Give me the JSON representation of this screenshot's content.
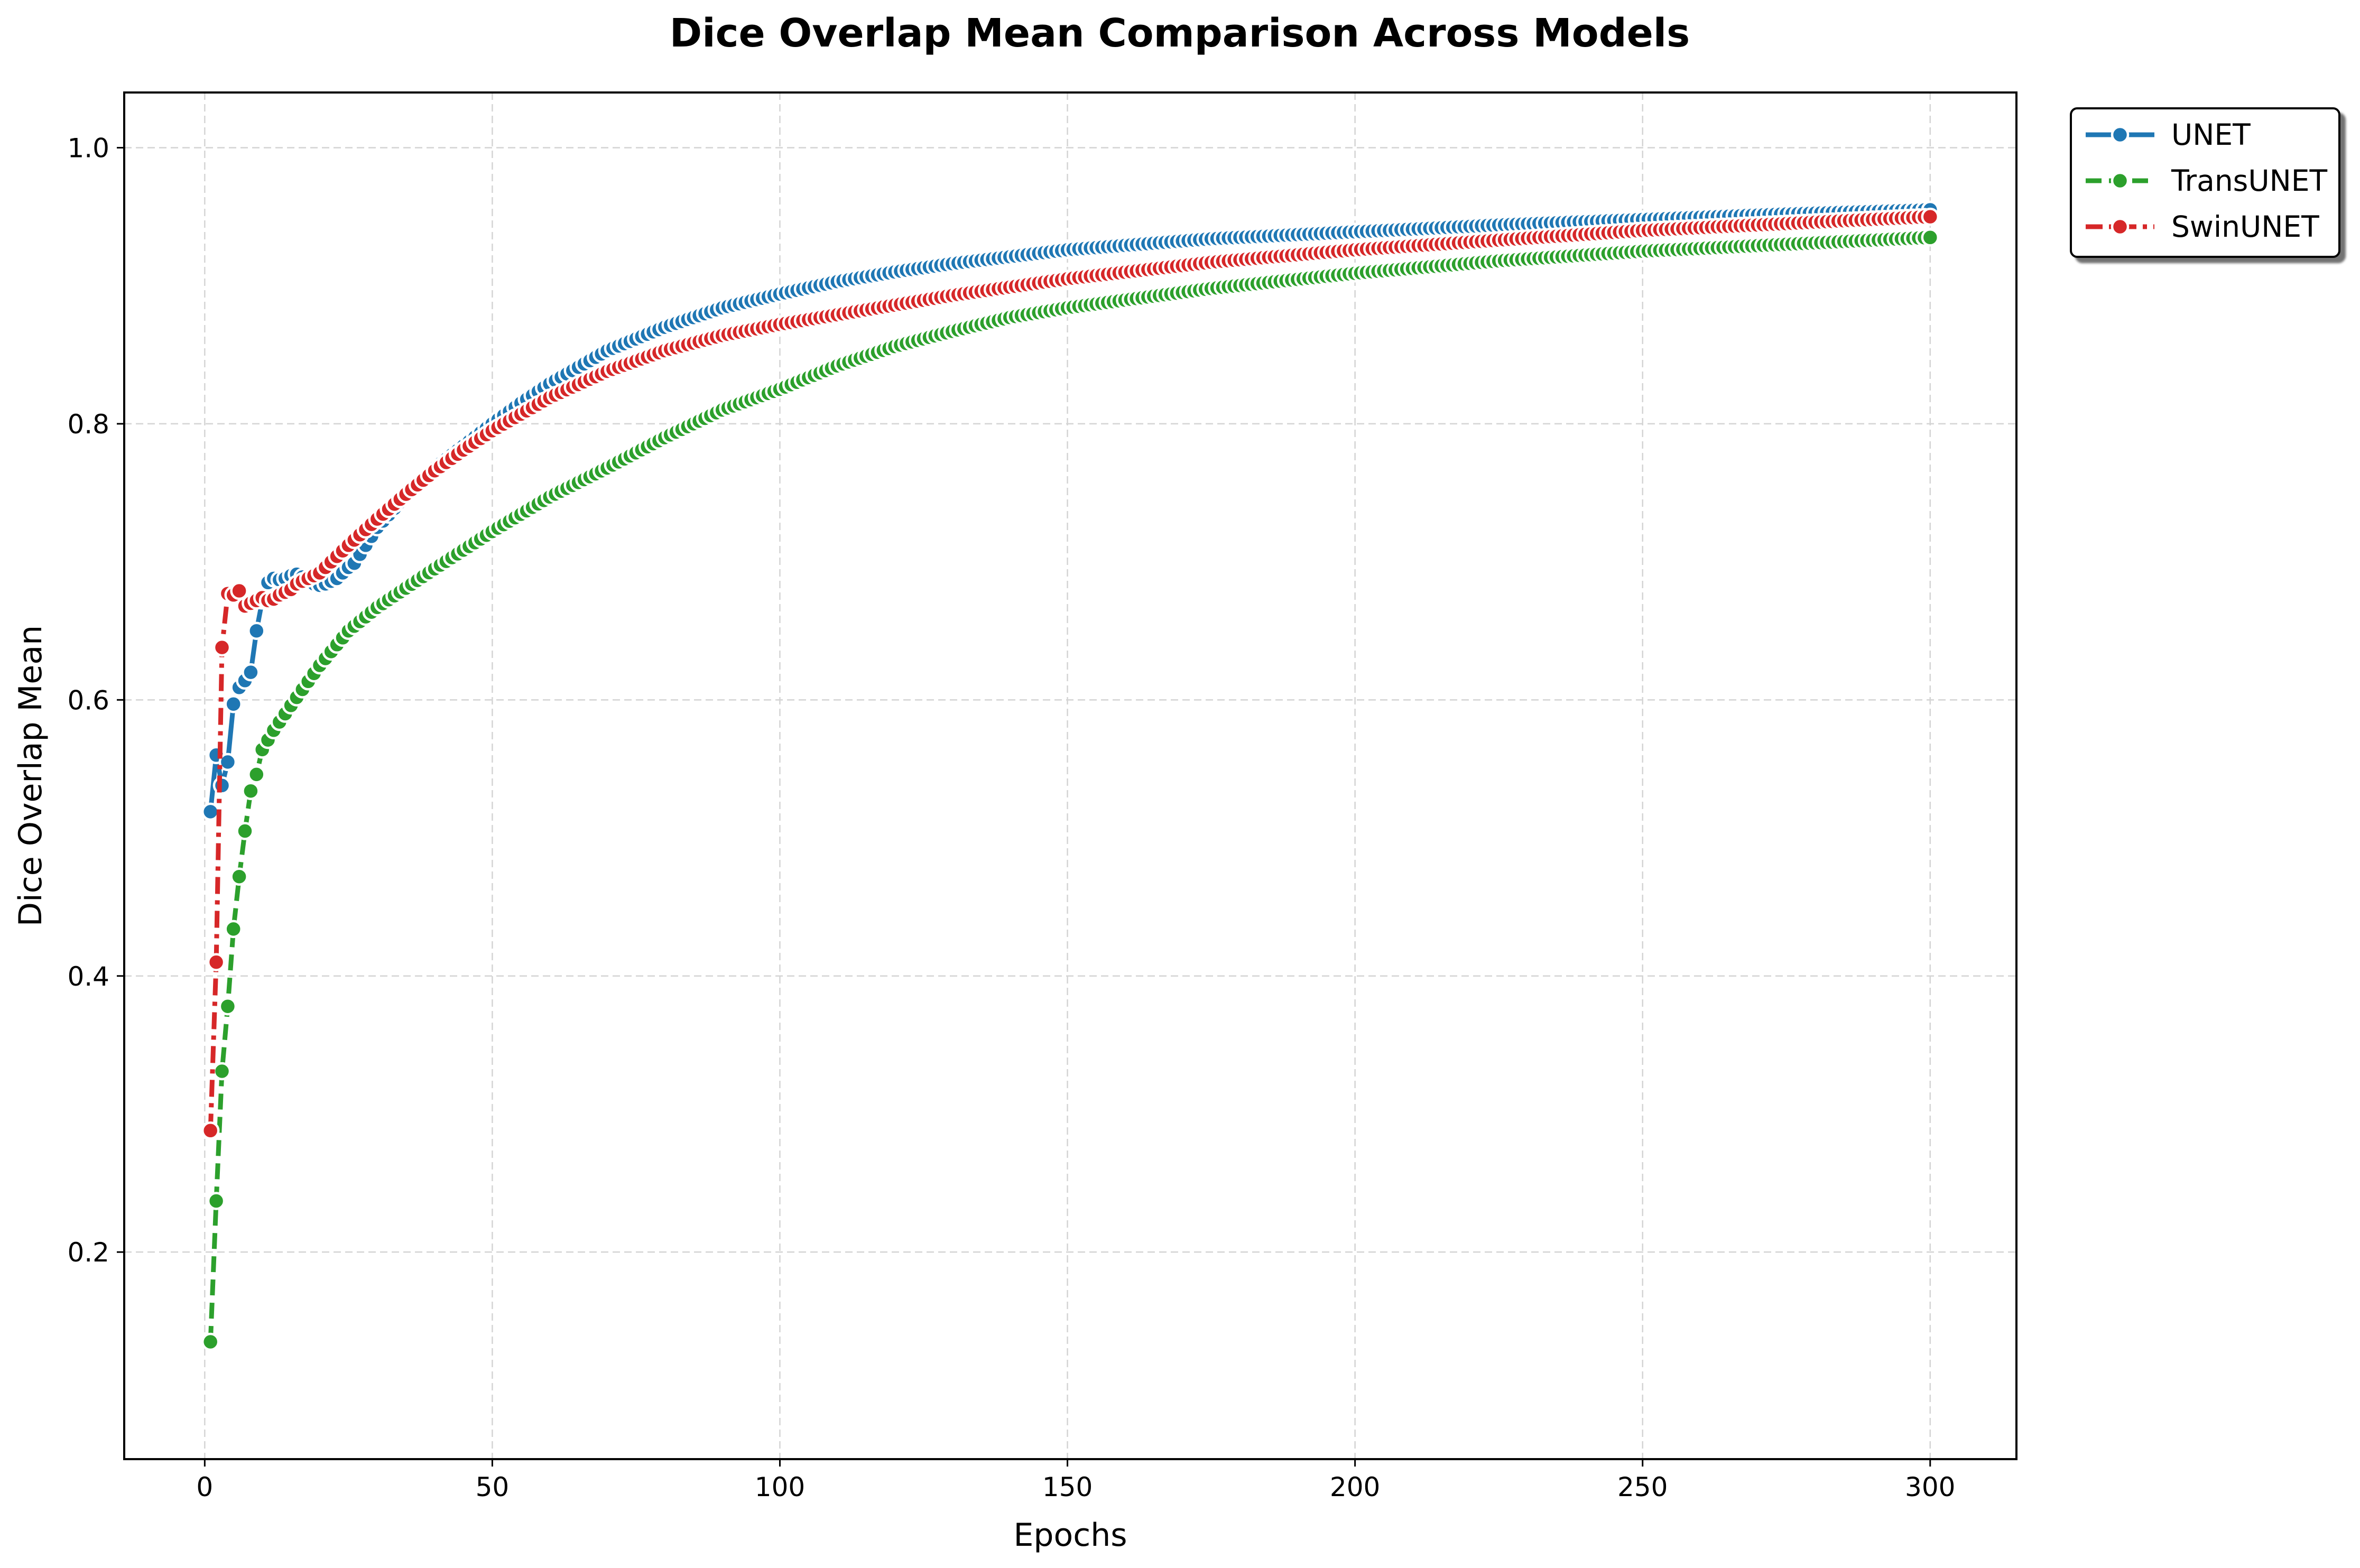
{
  "chart_data": {
    "type": "line",
    "title": "Dice Overlap Mean Comparison Across Models",
    "xlabel": "Epochs",
    "ylabel": "Dice Overlap Mean",
    "xlim": [
      -14,
      315
    ],
    "ylim": [
      0.05,
      1.04
    ],
    "xticks": [
      0,
      50,
      100,
      150,
      200,
      250,
      300
    ],
    "yticks": [
      0.2,
      0.4,
      0.6,
      0.8,
      1.0
    ],
    "xtick_labels": [
      "0",
      "50",
      "100",
      "150",
      "200",
      "250",
      "300"
    ],
    "ytick_labels": [
      "0.2",
      "0.4",
      "0.6",
      "0.8",
      "1.0"
    ],
    "grid": true,
    "legend_position": "upper-right-outside",
    "marker": "circle",
    "series": [
      {
        "name": "UNET",
        "color": "#1f77b4",
        "linestyle": "solid",
        "anchors": [
          [
            1,
            0.519
          ],
          [
            2,
            0.56
          ],
          [
            3,
            0.538
          ],
          [
            4,
            0.555
          ],
          [
            5,
            0.597
          ],
          [
            6,
            0.609
          ],
          [
            7,
            0.614
          ],
          [
            8,
            0.62
          ],
          [
            9,
            0.65
          ],
          [
            10,
            0.672
          ],
          [
            11,
            0.685
          ],
          [
            12,
            0.688
          ],
          [
            13,
            0.687
          ],
          [
            14,
            0.688
          ],
          [
            15,
            0.69
          ],
          [
            16,
            0.691
          ],
          [
            17,
            0.689
          ],
          [
            18,
            0.686
          ],
          [
            19,
            0.684
          ],
          [
            20,
            0.683
          ],
          [
            21,
            0.684
          ],
          [
            22,
            0.686
          ],
          [
            23,
            0.688
          ],
          [
            24,
            0.692
          ],
          [
            25,
            0.696
          ],
          [
            26,
            0.699
          ],
          [
            28,
            0.712
          ],
          [
            30,
            0.725
          ],
          [
            35,
            0.748
          ],
          [
            40,
            0.768
          ],
          [
            45,
            0.784
          ],
          [
            50,
            0.8
          ],
          [
            55,
            0.815
          ],
          [
            60,
            0.829
          ],
          [
            70,
            0.853
          ],
          [
            80,
            0.87
          ],
          [
            90,
            0.884
          ],
          [
            100,
            0.894
          ],
          [
            110,
            0.903
          ],
          [
            120,
            0.91
          ],
          [
            130,
            0.916
          ],
          [
            140,
            0.921
          ],
          [
            150,
            0.926
          ],
          [
            175,
            0.934
          ],
          [
            200,
            0.939
          ],
          [
            225,
            0.944
          ],
          [
            250,
            0.948
          ],
          [
            275,
            0.952
          ],
          [
            300,
            0.955
          ]
        ]
      },
      {
        "name": "TransUNET",
        "color": "#2ca02c",
        "linestyle": "dashed",
        "anchors": [
          [
            1,
            0.135
          ],
          [
            2,
            0.237
          ],
          [
            3,
            0.331
          ],
          [
            4,
            0.378
          ],
          [
            5,
            0.434
          ],
          [
            6,
            0.472
          ],
          [
            7,
            0.505
          ],
          [
            8,
            0.534
          ],
          [
            9,
            0.546
          ],
          [
            10,
            0.564
          ],
          [
            12,
            0.578
          ],
          [
            15,
            0.596
          ],
          [
            20,
            0.625
          ],
          [
            25,
            0.65
          ],
          [
            30,
            0.667
          ],
          [
            40,
            0.695
          ],
          [
            50,
            0.722
          ],
          [
            60,
            0.747
          ],
          [
            70,
            0.768
          ],
          [
            80,
            0.79
          ],
          [
            90,
            0.81
          ],
          [
            100,
            0.825
          ],
          [
            110,
            0.842
          ],
          [
            120,
            0.856
          ],
          [
            130,
            0.867
          ],
          [
            140,
            0.877
          ],
          [
            150,
            0.884
          ],
          [
            175,
            0.898
          ],
          [
            200,
            0.909
          ],
          [
            225,
            0.918
          ],
          [
            250,
            0.925
          ],
          [
            275,
            0.93
          ],
          [
            300,
            0.935
          ]
        ]
      },
      {
        "name": "SwinUNET",
        "color": "#d62728",
        "linestyle": "dashdot",
        "anchors": [
          [
            1,
            0.288
          ],
          [
            2,
            0.41
          ],
          [
            3,
            0.638
          ],
          [
            4,
            0.677
          ],
          [
            5,
            0.676
          ],
          [
            6,
            0.679
          ],
          [
            7,
            0.668
          ],
          [
            8,
            0.67
          ],
          [
            9,
            0.672
          ],
          [
            10,
            0.674
          ],
          [
            11,
            0.672
          ],
          [
            12,
            0.673
          ],
          [
            13,
            0.676
          ],
          [
            14,
            0.678
          ],
          [
            15,
            0.68
          ],
          [
            16,
            0.684
          ],
          [
            17,
            0.686
          ],
          [
            18,
            0.688
          ],
          [
            20,
            0.692
          ],
          [
            22,
            0.7
          ],
          [
            25,
            0.712
          ],
          [
            30,
            0.731
          ],
          [
            35,
            0.749
          ],
          [
            40,
            0.766
          ],
          [
            45,
            0.781
          ],
          [
            50,
            0.795
          ],
          [
            55,
            0.807
          ],
          [
            60,
            0.819
          ],
          [
            70,
            0.838
          ],
          [
            80,
            0.853
          ],
          [
            90,
            0.864
          ],
          [
            100,
            0.872
          ],
          [
            110,
            0.879
          ],
          [
            120,
            0.886
          ],
          [
            130,
            0.893
          ],
          [
            140,
            0.899
          ],
          [
            150,
            0.905
          ],
          [
            175,
            0.917
          ],
          [
            200,
            0.926
          ],
          [
            225,
            0.933
          ],
          [
            250,
            0.94
          ],
          [
            275,
            0.945
          ],
          [
            300,
            0.95
          ]
        ]
      }
    ]
  }
}
